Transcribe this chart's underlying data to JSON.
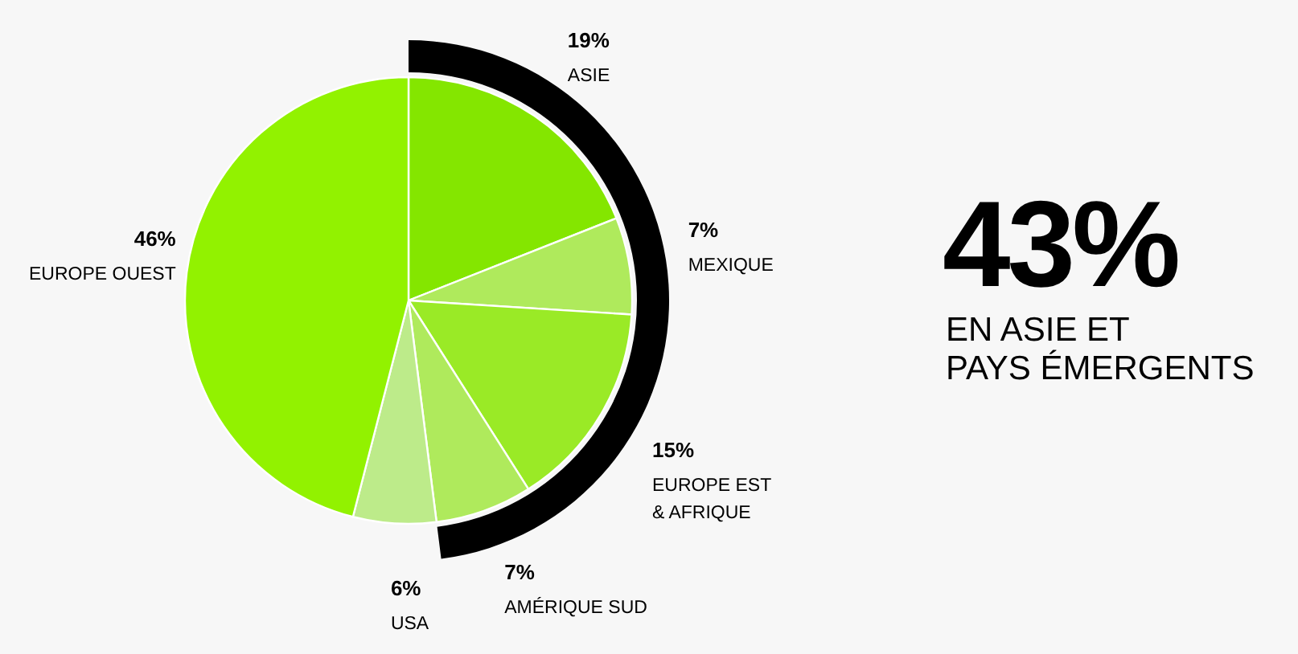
{
  "chart_data": {
    "type": "pie",
    "categories": [
      "ASIE",
      "MEXIQUE",
      "EUROPE EST\n& AFRIQUE",
      "AMÉRIQUE SUD",
      "USA",
      "EUROPE OUEST"
    ],
    "values": [
      19,
      7,
      15,
      7,
      6,
      46
    ],
    "colors": [
      "#84e600",
      "#afea5c",
      "#9aea26",
      "#afea5c",
      "#bdeb8a",
      "#92f200"
    ],
    "value_labels": [
      "19%",
      "7%",
      "15%",
      "7%",
      "6%",
      "46%"
    ],
    "annotations": [
      "43%",
      "EN ASIE ET\nPAYS ÉMERGENTS"
    ]
  }
}
